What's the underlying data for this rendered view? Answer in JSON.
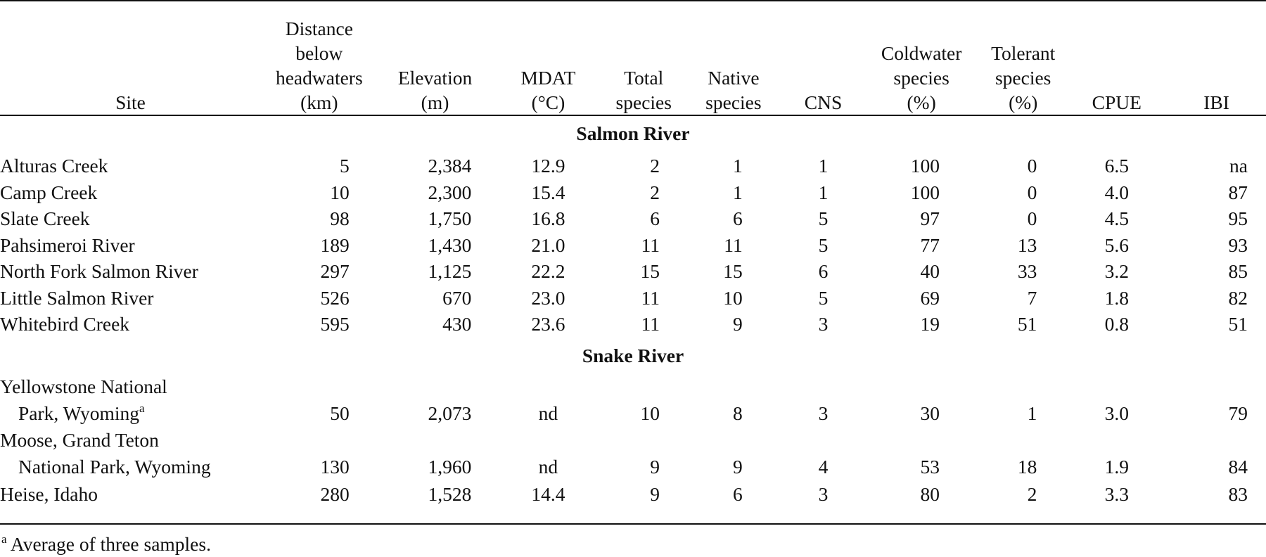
{
  "table": {
    "columns": [
      {
        "lines": [
          "Site"
        ]
      },
      {
        "lines": [
          "Distance",
          "below",
          "headwaters",
          "(km)"
        ]
      },
      {
        "lines": [
          "Elevation",
          "(m)"
        ]
      },
      {
        "lines": [
          "MDAT",
          "(°C)"
        ]
      },
      {
        "lines": [
          "Total",
          "species"
        ]
      },
      {
        "lines": [
          "Native",
          "species"
        ]
      },
      {
        "lines": [
          "CNS"
        ]
      },
      {
        "lines": [
          "Coldwater",
          "species",
          "(%)"
        ]
      },
      {
        "lines": [
          "Tolerant",
          "species",
          "(%)"
        ]
      },
      {
        "lines": [
          "CPUE"
        ]
      },
      {
        "lines": [
          "IBI"
        ]
      }
    ],
    "groups": [
      {
        "name": "Salmon River",
        "rows": [
          {
            "site": "Alturas Creek",
            "distance": "5",
            "elevation": "2,384",
            "mdat": "12.9",
            "total": "2",
            "native": "1",
            "cns": "1",
            "coldwater": "100",
            "tolerant": "0",
            "cpue": "6.5",
            "ibi": "na"
          },
          {
            "site": "Camp Creek",
            "distance": "10",
            "elevation": "2,300",
            "mdat": "15.4",
            "total": "2",
            "native": "1",
            "cns": "1",
            "coldwater": "100",
            "tolerant": "0",
            "cpue": "4.0",
            "ibi": "87"
          },
          {
            "site": "Slate Creek",
            "distance": "98",
            "elevation": "1,750",
            "mdat": "16.8",
            "total": "6",
            "native": "6",
            "cns": "5",
            "coldwater": "97",
            "tolerant": "0",
            "cpue": "4.5",
            "ibi": "95"
          },
          {
            "site": "Pahsimeroi River",
            "distance": "189",
            "elevation": "1,430",
            "mdat": "21.0",
            "total": "11",
            "native": "11",
            "cns": "5",
            "coldwater": "77",
            "tolerant": "13",
            "cpue": "5.6",
            "ibi": "93"
          },
          {
            "site": "North Fork Salmon River",
            "distance": "297",
            "elevation": "1,125",
            "mdat": "22.2",
            "total": "15",
            "native": "15",
            "cns": "6",
            "coldwater": "40",
            "tolerant": "33",
            "cpue": "3.2",
            "ibi": "85"
          },
          {
            "site": "Little Salmon River",
            "distance": "526",
            "elevation": "670",
            "mdat": "23.0",
            "total": "11",
            "native": "10",
            "cns": "5",
            "coldwater": "69",
            "tolerant": "7",
            "cpue": "1.8",
            "ibi": "82"
          },
          {
            "site": "Whitebird Creek",
            "distance": "595",
            "elevation": "430",
            "mdat": "23.6",
            "total": "11",
            "native": "9",
            "cns": "3",
            "coldwater": "19",
            "tolerant": "51",
            "cpue": "0.8",
            "ibi": "51"
          }
        ]
      },
      {
        "name": "Snake River",
        "rows": [
          {
            "site_line1": "Yellowstone National",
            "site_line2": "Park, Wyoming",
            "site_note": "a",
            "distance": "50",
            "elevation": "2,073",
            "mdat": "nd",
            "total": "10",
            "native": "8",
            "cns": "3",
            "coldwater": "30",
            "tolerant": "1",
            "cpue": "3.0",
            "ibi": "79"
          },
          {
            "site_line1": "Moose, Grand Teton",
            "site_line2": "National Park, Wyoming",
            "distance": "130",
            "elevation": "1,960",
            "mdat": "nd",
            "total": "9",
            "native": "9",
            "cns": "4",
            "coldwater": "53",
            "tolerant": "18",
            "cpue": "1.9",
            "ibi": "84"
          },
          {
            "site": "Heise, Idaho",
            "distance": "280",
            "elevation": "1,528",
            "mdat": "14.4",
            "total": "9",
            "native": "6",
            "cns": "3",
            "coldwater": "80",
            "tolerant": "2",
            "cpue": "3.3",
            "ibi": "83"
          }
        ]
      }
    ]
  },
  "footnote": {
    "marker": "a",
    "text": " Average of three samples."
  }
}
